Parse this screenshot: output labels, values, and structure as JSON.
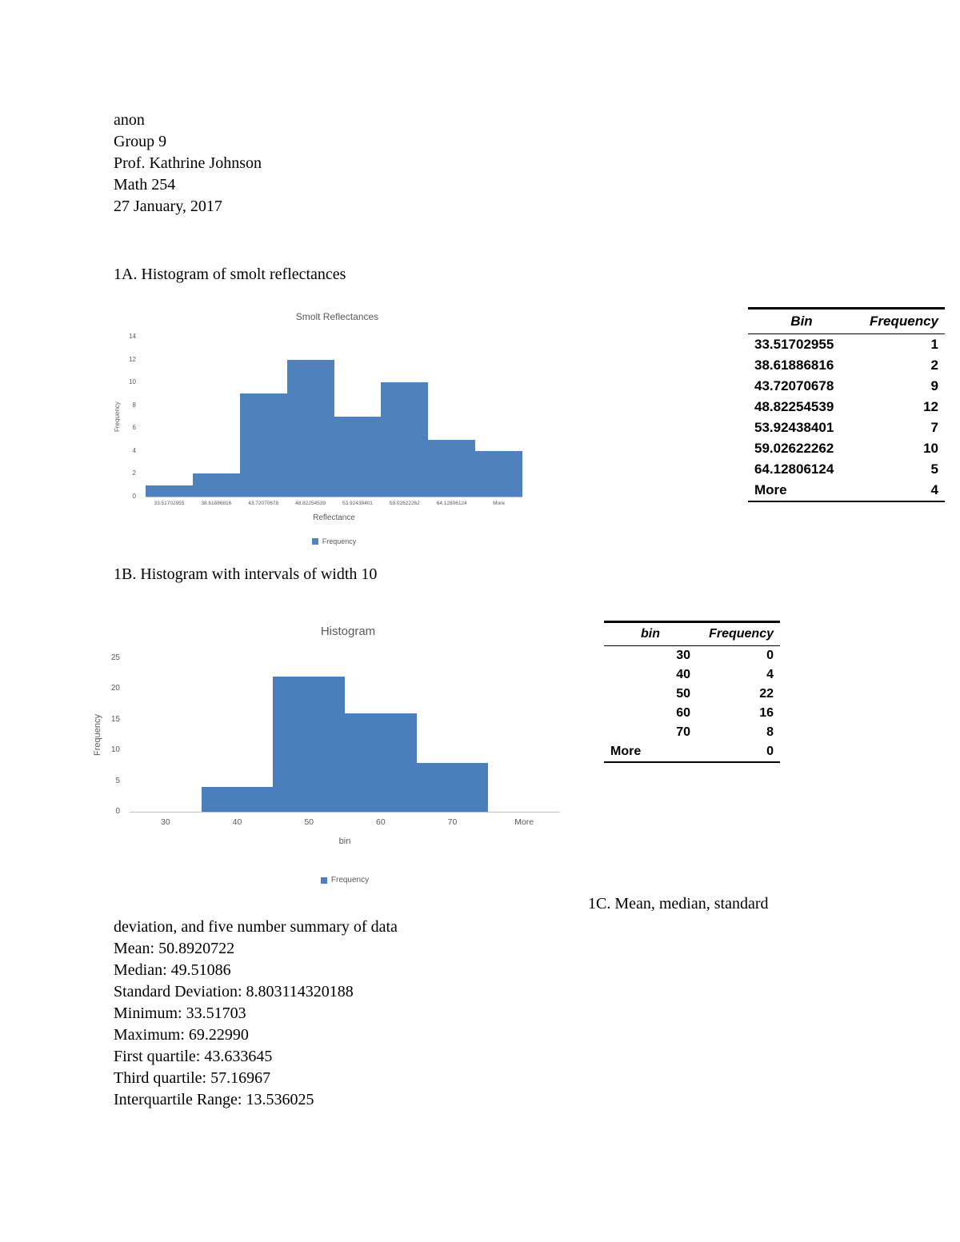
{
  "page": {
    "header_lines": [
      "anon",
      "Group 9",
      "Prof. Kathrine Johnson",
      "Math 254",
      "27 January, 2017"
    ],
    "section_1a_title": "1A. Histogram of smolt reflectances",
    "section_1b_title": "1B. Histogram with intervals of width 10",
    "section_1c_title_right": "1C. Mean, median, standard",
    "section_1c_title_wrap": "deviation, and five number summary of data",
    "stats": [
      "Mean: 50.8920722",
      "Median: 49.51086",
      "Standard Deviation: 8.803114320188",
      "Minimum: 33.51703",
      "Maximum: 69.22990",
      "First quartile: 43.633645",
      "Third quartile: 57.16967",
      "Interquartile Range: 13.536025"
    ]
  },
  "chart_data": [
    {
      "type": "bar",
      "title": "Smolt Reflectances",
      "categories": [
        "33.51702955",
        "38.61886816",
        "43.72070678",
        "48.82254539",
        "53.92438401",
        "59.02622262",
        "64.12806124",
        "More"
      ],
      "values": [
        1,
        2,
        9,
        12,
        7,
        10,
        5,
        4
      ],
      "xlabel": "Reflectance",
      "ylabel": "Frequency",
      "ylim": [
        0,
        14
      ],
      "yticks": [
        0,
        2,
        4,
        6,
        8,
        10,
        12,
        14
      ],
      "legend": [
        "Frequency"
      ],
      "legend_position": "bottom",
      "bar_color": "#4f81bd",
      "grid": false
    },
    {
      "type": "bar",
      "title": "Histogram",
      "categories": [
        "30",
        "40",
        "50",
        "60",
        "70",
        "More"
      ],
      "values": [
        0,
        4,
        22,
        16,
        8,
        0
      ],
      "xlabel": "bin",
      "ylabel": "Frequency",
      "ylim": [
        0,
        25
      ],
      "yticks": [
        0,
        5,
        10,
        15,
        20,
        25
      ],
      "legend": [
        "Frequency"
      ],
      "legend_position": "bottom",
      "bar_color": "#4a7ebc",
      "grid": false
    }
  ],
  "table_1a": {
    "headers": [
      "Bin",
      "Frequency"
    ],
    "rows": [
      [
        "33.51702955",
        "1"
      ],
      [
        "38.61886816",
        "2"
      ],
      [
        "43.72070678",
        "9"
      ],
      [
        "48.82254539",
        "12"
      ],
      [
        "53.92438401",
        "7"
      ],
      [
        "59.02622262",
        "10"
      ],
      [
        "64.12806124",
        "5"
      ],
      [
        "More",
        "4"
      ]
    ]
  },
  "table_1b": {
    "headers": [
      "bin",
      "Frequency"
    ],
    "rows": [
      [
        "30",
        "0"
      ],
      [
        "40",
        "4"
      ],
      [
        "50",
        "22"
      ],
      [
        "60",
        "16"
      ],
      [
        "70",
        "8"
      ],
      [
        "More",
        "0"
      ]
    ]
  }
}
